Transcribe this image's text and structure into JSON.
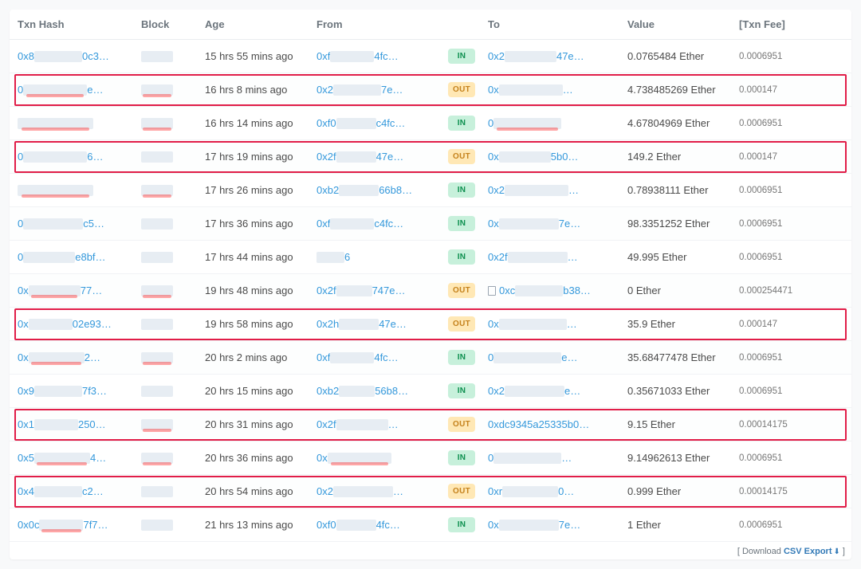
{
  "columns": [
    "Txn Hash",
    "Block",
    "Age",
    "From",
    "",
    "To",
    "Value",
    "[Txn Fee]"
  ],
  "colors": {
    "link": "#3498db",
    "badge_in_bg": "#c7f0db",
    "badge_in_fg": "#0d8f4f",
    "badge_out_bg": "#ffe8b5",
    "badge_out_fg": "#c5821c",
    "highlight_border": "#e11d48",
    "fee_color": "#777777",
    "smudge_gray": "#e7edf3",
    "smudge_red": "rgba(255,0,0,0.35)"
  },
  "footer": {
    "prefix": "[ Download ",
    "csv": "CSV Export",
    "suffix": " ]"
  },
  "rows": [
    {
      "hash": "0x8",
      "hash_suffix": "0c3…",
      "hash_blur_w": 60,
      "block": "",
      "age": "15 hrs 55 mins ago",
      "from": "0xf",
      "from_suffix": "4fc…",
      "from_blur_w": 55,
      "dir": "IN",
      "to": "0x2",
      "to_suffix": "47e…",
      "to_blur_w": 65,
      "value": "0.0765484 Ether",
      "fee": "0.0006951",
      "highlight": false
    },
    {
      "hash": "0",
      "hash_suffix": "e…",
      "hash_blur_w": 80,
      "hash_red": true,
      "block": "",
      "block_red": true,
      "age": "16 hrs 8 mins ago",
      "from": "0x2",
      "from_suffix": "7e…",
      "from_blur_w": 60,
      "dir": "OUT",
      "to": "0x",
      "to_suffix": "…",
      "to_blur_w": 80,
      "value": "4.738485269 Ether",
      "fee": "0.000147",
      "highlight": true
    },
    {
      "hash": "",
      "hash_suffix": "",
      "hash_blur_w": 95,
      "hash_red": true,
      "block": "",
      "block_red": true,
      "age": "16 hrs 14 mins ago",
      "from": "0xf0",
      "from_suffix": "c4fc…",
      "from_blur_w": 50,
      "dir": "IN",
      "to": "0",
      "to_suffix": "",
      "to_blur_w": 85,
      "to_red": true,
      "value": "4.67804969 Ether",
      "fee": "0.0006951",
      "highlight": false
    },
    {
      "hash": "0",
      "hash_suffix": "6…",
      "hash_blur_w": 80,
      "block": "",
      "age": "17 hrs 19 mins ago",
      "from": "0x2f",
      "from_suffix": "47e…",
      "from_blur_w": 50,
      "dir": "OUT",
      "to": "0x",
      "to_suffix": "5b0…",
      "to_blur_w": 65,
      "value": "149.2 Ether",
      "fee": "0.000147",
      "highlight": true
    },
    {
      "hash": "",
      "hash_suffix": "",
      "hash_blur_w": 95,
      "hash_red": true,
      "block": "",
      "block_red": true,
      "age": "17 hrs 26 mins ago",
      "from": "0xb2",
      "from_suffix": "66b8…",
      "from_blur_w": 50,
      "dir": "IN",
      "to": "0x2",
      "to_suffix": "…",
      "to_blur_w": 80,
      "value": "0.78938111 Ether",
      "fee": "0.0006951",
      "highlight": false
    },
    {
      "hash": "0",
      "hash_suffix": "c5…",
      "hash_blur_w": 75,
      "block": "",
      "age": "17 hrs 36 mins ago",
      "from": "0xf",
      "from_suffix": "c4fc…",
      "from_blur_w": 55,
      "dir": "IN",
      "to": "0x",
      "to_suffix": "7e…",
      "to_blur_w": 75,
      "value": "98.3351252 Ether",
      "fee": "0.0006951",
      "highlight": false
    },
    {
      "hash": "0",
      "hash_suffix": "e8bf…",
      "hash_blur_w": 65,
      "block": "",
      "age": "17 hrs 44 mins ago",
      "from": "",
      "from_suffix": "6",
      "from_blur_w": 35,
      "dir": "IN",
      "to": "0x2f",
      "to_suffix": "…",
      "to_blur_w": 75,
      "value": "49.995 Ether",
      "fee": "0.0006951",
      "highlight": false
    },
    {
      "hash": "0x",
      "hash_suffix": "77…",
      "hash_blur_w": 65,
      "hash_red": true,
      "block": "",
      "block_red": true,
      "age": "19 hrs 48 mins ago",
      "from": "0x2f",
      "from_suffix": "747e…",
      "from_blur_w": 45,
      "dir": "OUT",
      "to": "0xc",
      "to_suffix": "b38…",
      "to_blur_w": 60,
      "to_doc": true,
      "value": "0 Ether",
      "fee": "0.000254471",
      "highlight": false
    },
    {
      "hash": "0x",
      "hash_suffix": "02e93…",
      "hash_blur_w": 55,
      "block": "",
      "age": "19 hrs 58 mins ago",
      "from": "0x2h",
      "from_suffix": "47e…",
      "from_blur_w": 50,
      "dir": "OUT",
      "to": "0x",
      "to_suffix": "…",
      "to_blur_w": 85,
      "value": "35.9 Ether",
      "fee": "0.000147",
      "highlight": true
    },
    {
      "hash": "0x",
      "hash_suffix": "2…",
      "hash_blur_w": 70,
      "hash_red": true,
      "block": "",
      "block_red": true,
      "age": "20 hrs 2 mins ago",
      "from": "0xf",
      "from_suffix": "4fc…",
      "from_blur_w": 55,
      "dir": "IN",
      "to": "0",
      "to_suffix": "e…",
      "to_blur_w": 85,
      "value": "35.68477478 Ether",
      "fee": "0.0006951",
      "highlight": false
    },
    {
      "hash": "0x9",
      "hash_suffix": "7f3…",
      "hash_blur_w": 60,
      "block": "",
      "age": "20 hrs 15 mins ago",
      "from": "0xb2",
      "from_suffix": "56b8…",
      "from_blur_w": 45,
      "dir": "IN",
      "to": "0x2",
      "to_suffix": "e…",
      "to_blur_w": 75,
      "value": "0.35671033 Ether",
      "fee": "0.0006951",
      "highlight": false
    },
    {
      "hash": "0x1",
      "hash_suffix": "250…",
      "hash_blur_w": 55,
      "block": "",
      "block_red": true,
      "age": "20 hrs 31 mins ago",
      "from": "0x2f",
      "from_suffix": "…",
      "from_blur_w": 65,
      "dir": "OUT",
      "to": "0xdc9345a25335b0…",
      "to_suffix": "",
      "to_blur_w": 0,
      "value": "9.15 Ether",
      "fee": "0.00014175",
      "highlight": true
    },
    {
      "hash": "0x5",
      "hash_suffix": "4…",
      "hash_blur_w": 70,
      "hash_red": true,
      "block": "",
      "block_red": true,
      "age": "20 hrs 36 mins ago",
      "from": "0x",
      "from_suffix": "",
      "from_blur_w": 80,
      "from_red": true,
      "dir": "IN",
      "to": "0",
      "to_suffix": "…",
      "to_blur_w": 85,
      "value": "9.14962613 Ether",
      "fee": "0.0006951",
      "highlight": false
    },
    {
      "hash": "0x4",
      "hash_suffix": "c2…",
      "hash_blur_w": 60,
      "block": "",
      "age": "20 hrs 54 mins ago",
      "from": "0x2",
      "from_suffix": "…",
      "from_blur_w": 75,
      "dir": "OUT",
      "to": "0xr",
      "to_suffix": "0…",
      "to_blur_w": 70,
      "value": "0.999 Ether",
      "fee": "0.00014175",
      "highlight": true
    },
    {
      "hash": "0x0c",
      "hash_suffix": "7f7…",
      "hash_blur_w": 55,
      "hash_red": true,
      "block": "",
      "age": "21 hrs 13 mins ago",
      "from": "0xf0",
      "from_suffix": "4fc…",
      "from_blur_w": 50,
      "dir": "IN",
      "to": "0x",
      "to_suffix": "7e…",
      "to_blur_w": 75,
      "value": "1 Ether",
      "fee": "0.0006951",
      "highlight": false
    }
  ]
}
